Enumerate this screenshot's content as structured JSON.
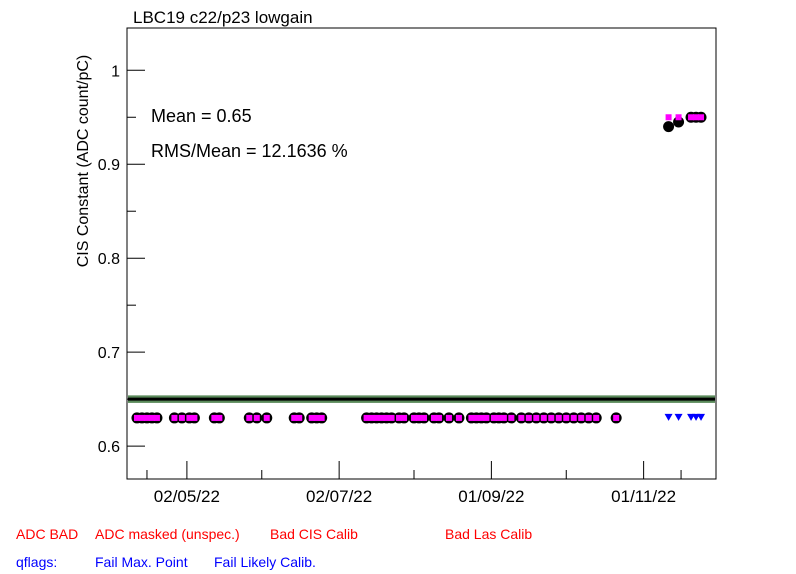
{
  "chart_data": {
    "type": "scatter",
    "title": "LBC19 c22/p23 lowgain",
    "ylabel": "CIS Constant (ADC count/pC)",
    "xlabel": "",
    "ylim": [
      0.565,
      1.045
    ],
    "xlim": [
      "2022-04-08",
      "2022-11-30"
    ],
    "x_tick_labels": [
      "02/05/22",
      "02/07/22",
      "01/09/22",
      "01/11/22"
    ],
    "x_tick_dates": [
      "2022-05-02",
      "2022-07-02",
      "2022-09-01",
      "2022-11-01"
    ],
    "y_tick_labels": [
      "0.6",
      "0.7",
      "0.8",
      "0.9",
      "1"
    ],
    "y_tick_values": [
      0.6,
      0.7,
      0.8,
      0.9,
      1.0
    ],
    "stats": {
      "mean_label": "Mean = 0.65",
      "rms_label": "RMS/Mean = 12.1636 %"
    },
    "mean_line": {
      "value": 0.65,
      "band": [
        0.646,
        0.654
      ],
      "line_color": "#000000",
      "band_color": "#5a8a5a"
    },
    "series": [
      {
        "marker": "circle",
        "color": "#000000",
        "x": [
          "2022-04-12",
          "2022-04-14",
          "2022-04-16",
          "2022-04-18",
          "2022-04-20",
          "2022-04-27",
          "2022-04-30",
          "2022-05-03",
          "2022-05-05",
          "2022-05-13",
          "2022-05-15",
          "2022-05-27",
          "2022-05-30",
          "2022-06-03",
          "2022-06-14",
          "2022-06-16",
          "2022-06-21",
          "2022-06-23",
          "2022-06-25",
          "2022-07-13",
          "2022-07-15",
          "2022-07-17",
          "2022-07-19",
          "2022-07-21",
          "2022-07-23",
          "2022-07-26",
          "2022-07-28",
          "2022-08-01",
          "2022-08-03",
          "2022-08-05",
          "2022-08-09",
          "2022-08-11",
          "2022-08-15",
          "2022-08-19",
          "2022-08-24",
          "2022-08-26",
          "2022-08-28",
          "2022-08-30",
          "2022-09-02",
          "2022-09-04",
          "2022-09-06",
          "2022-09-09",
          "2022-09-13",
          "2022-09-16",
          "2022-09-19",
          "2022-09-22",
          "2022-09-25",
          "2022-09-28",
          "2022-10-01",
          "2022-10-04",
          "2022-10-07",
          "2022-10-10",
          "2022-10-13",
          "2022-10-21",
          "2022-11-11",
          "2022-11-15",
          "2022-11-20",
          "2022-11-22",
          "2022-11-24"
        ],
        "y": [
          0.63,
          0.63,
          0.63,
          0.63,
          0.63,
          0.63,
          0.63,
          0.63,
          0.63,
          0.63,
          0.63,
          0.63,
          0.63,
          0.63,
          0.63,
          0.63,
          0.63,
          0.63,
          0.63,
          0.63,
          0.63,
          0.63,
          0.63,
          0.63,
          0.63,
          0.63,
          0.63,
          0.63,
          0.63,
          0.63,
          0.63,
          0.63,
          0.63,
          0.63,
          0.63,
          0.63,
          0.63,
          0.63,
          0.63,
          0.63,
          0.63,
          0.63,
          0.63,
          0.63,
          0.63,
          0.63,
          0.63,
          0.63,
          0.63,
          0.63,
          0.63,
          0.63,
          0.63,
          0.63,
          0.94,
          0.945,
          0.95,
          0.95,
          0.95
        ]
      },
      {
        "marker": "square",
        "color": "#ff00ff",
        "x": [
          "2022-04-12",
          "2022-04-14",
          "2022-04-16",
          "2022-04-18",
          "2022-04-20",
          "2022-04-27",
          "2022-04-30",
          "2022-05-03",
          "2022-05-05",
          "2022-05-13",
          "2022-05-15",
          "2022-05-27",
          "2022-05-30",
          "2022-06-03",
          "2022-06-14",
          "2022-06-16",
          "2022-06-21",
          "2022-06-23",
          "2022-06-25",
          "2022-07-13",
          "2022-07-15",
          "2022-07-17",
          "2022-07-19",
          "2022-07-21",
          "2022-07-23",
          "2022-07-26",
          "2022-07-28",
          "2022-08-01",
          "2022-08-03",
          "2022-08-05",
          "2022-08-09",
          "2022-08-11",
          "2022-08-15",
          "2022-08-19",
          "2022-08-24",
          "2022-08-26",
          "2022-08-28",
          "2022-08-30",
          "2022-09-02",
          "2022-09-04",
          "2022-09-06",
          "2022-09-09",
          "2022-09-13",
          "2022-09-16",
          "2022-09-19",
          "2022-09-22",
          "2022-09-25",
          "2022-09-28",
          "2022-10-01",
          "2022-10-04",
          "2022-10-07",
          "2022-10-10",
          "2022-10-13",
          "2022-10-21",
          "2022-11-11",
          "2022-11-15",
          "2022-11-20",
          "2022-11-22",
          "2022-11-24"
        ],
        "y": [
          0.63,
          0.63,
          0.63,
          0.63,
          0.63,
          0.63,
          0.63,
          0.63,
          0.63,
          0.63,
          0.63,
          0.63,
          0.63,
          0.63,
          0.63,
          0.63,
          0.63,
          0.63,
          0.63,
          0.63,
          0.63,
          0.63,
          0.63,
          0.63,
          0.63,
          0.63,
          0.63,
          0.63,
          0.63,
          0.63,
          0.63,
          0.63,
          0.63,
          0.63,
          0.63,
          0.63,
          0.63,
          0.63,
          0.63,
          0.63,
          0.63,
          0.63,
          0.63,
          0.63,
          0.63,
          0.63,
          0.63,
          0.63,
          0.63,
          0.63,
          0.63,
          0.63,
          0.63,
          0.63,
          0.95,
          0.95,
          0.95,
          0.95,
          0.95
        ]
      },
      {
        "marker": "triangle-down",
        "color": "#0000ff",
        "x": [
          "2022-11-11",
          "2022-11-15",
          "2022-11-20",
          "2022-11-22",
          "2022-11-24"
        ],
        "y": [
          0.63,
          0.63,
          0.63,
          0.63,
          0.63
        ]
      }
    ]
  },
  "legend": {
    "row1": [
      {
        "text": "ADC BAD",
        "color": "#ff0000"
      },
      {
        "text": "ADC masked (unspec.)",
        "color": "#ff0000"
      },
      {
        "text": "Bad CIS Calib",
        "color": "#ff0000"
      },
      {
        "text": "Bad Las Calib",
        "color": "#ff0000"
      }
    ],
    "row2": [
      {
        "text": "qflags:",
        "color": "#0000ff"
      },
      {
        "text": "Fail Max. Point",
        "color": "#0000ff"
      },
      {
        "text": "Fail Likely Calib.",
        "color": "#0000ff"
      }
    ]
  }
}
